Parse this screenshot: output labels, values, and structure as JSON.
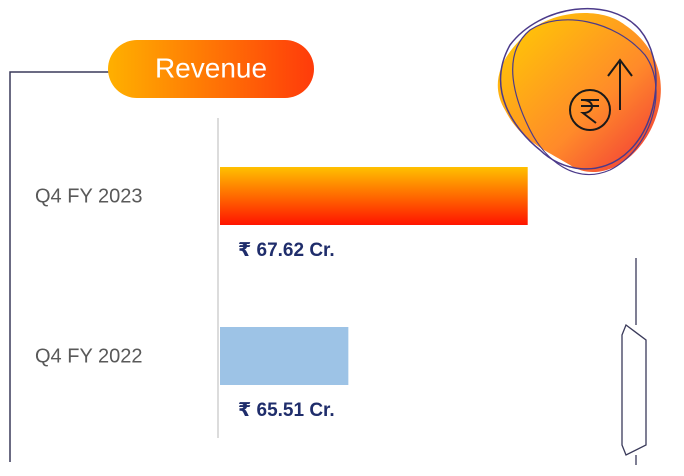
{
  "chart_data": {
    "type": "bar",
    "orientation": "horizontal",
    "title": "Revenue",
    "categories": [
      "Q4 FY 2023",
      "Q4 FY 2022"
    ],
    "values": [
      67.62,
      65.51
    ],
    "value_labels": [
      "₹ 67.62 Cr.",
      "₹ 65.51 Cr."
    ],
    "colors": [
      {
        "from": "#ffc000",
        "to": "#ff1400"
      },
      "#9dc3e6"
    ],
    "xlim": [
      64,
      68
    ]
  }
}
